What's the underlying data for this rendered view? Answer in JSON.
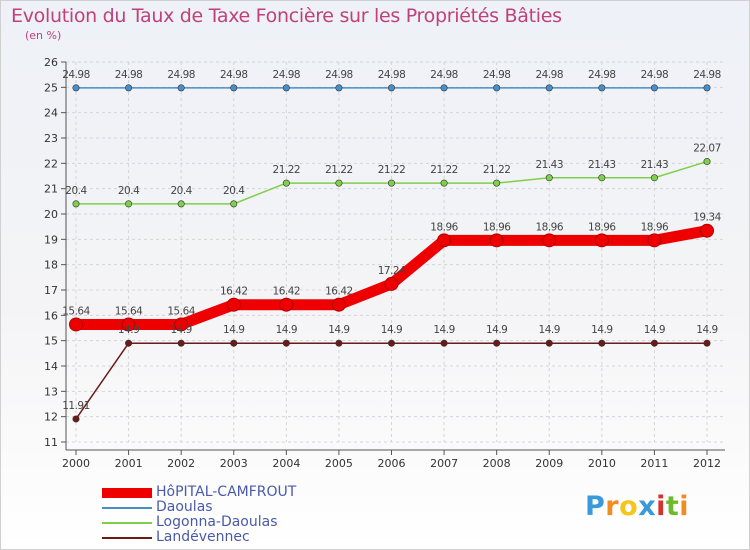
{
  "title": "Evolution du Taux de Taxe Foncière sur les Propriétés Bâties",
  "unit": "(en %)",
  "logo": {
    "letters": [
      "P",
      "r",
      "o",
      "x",
      "i",
      "t",
      "i"
    ],
    "colors": [
      "#3a9ad9",
      "#f28c1e",
      "#f5c518",
      "#3a9ad9",
      "#d6332d",
      "#6dba2c",
      "#f28c1e"
    ]
  },
  "chart_data": {
    "type": "line",
    "title": "Evolution du Taux de Taxe Foncière sur les Propriétés Bâties",
    "ylabel": "(en %)",
    "xlabel": "",
    "ylim": [
      11,
      26
    ],
    "yticks": [
      11,
      12,
      13,
      14,
      15,
      16,
      17,
      18,
      19,
      20,
      21,
      22,
      23,
      24,
      25,
      26
    ],
    "x": [
      "2000",
      "2001",
      "2002",
      "2003",
      "2004",
      "2005",
      "2006",
      "2007",
      "2008",
      "2009",
      "2010",
      "2011",
      "2012"
    ],
    "grid": true,
    "legend_position": "bottom-left",
    "series": [
      {
        "name": "HôPITAL-CAMFROUT",
        "color": "#ee0000",
        "style": "thick",
        "values": [
          15.64,
          15.64,
          15.64,
          16.42,
          16.42,
          16.42,
          17.24,
          18.96,
          18.96,
          18.96,
          18.96,
          18.96,
          19.34
        ],
        "labels": [
          "15.64",
          "15.64",
          "15.64",
          "16.42",
          "16.42",
          "16.42",
          "17.24",
          "18.96",
          "18.96",
          "18.96",
          "18.96",
          "18.96",
          "19.34"
        ]
      },
      {
        "name": "Daoulas",
        "color": "#4a8ec8",
        "style": "thin",
        "values": [
          24.98,
          24.98,
          24.98,
          24.98,
          24.98,
          24.98,
          24.98,
          24.98,
          24.98,
          24.98,
          24.98,
          24.98,
          24.98
        ],
        "labels": [
          "24.98",
          "24.98",
          "24.98",
          "24.98",
          "24.98",
          "24.98",
          "24.98",
          "24.98",
          "24.98",
          "24.98",
          "24.98",
          "24.98",
          "24.98"
        ]
      },
      {
        "name": "Logonna-Daoulas",
        "color": "#7ed04a",
        "style": "thin",
        "values": [
          20.4,
          20.4,
          20.4,
          20.4,
          21.22,
          21.22,
          21.22,
          21.22,
          21.22,
          21.43,
          21.43,
          21.43,
          22.07
        ],
        "labels": [
          "20.4",
          "20.4",
          "20.4",
          "20.4",
          "21.22",
          "21.22",
          "21.22",
          "21.22",
          "21.22",
          "21.43",
          "21.43",
          "21.43",
          "22.07"
        ]
      },
      {
        "name": "Landévennec",
        "color": "#6b1a1a",
        "style": "thin",
        "values": [
          11.91,
          14.9,
          14.9,
          14.9,
          14.9,
          14.9,
          14.9,
          14.9,
          14.9,
          14.9,
          14.9,
          14.9,
          14.9
        ],
        "labels": [
          "11.91",
          "14.9",
          "14.9",
          "14.9",
          "14.9",
          "14.9",
          "14.9",
          "14.9",
          "14.9",
          "14.9",
          "14.9",
          "14.9",
          "14.9"
        ]
      }
    ]
  }
}
